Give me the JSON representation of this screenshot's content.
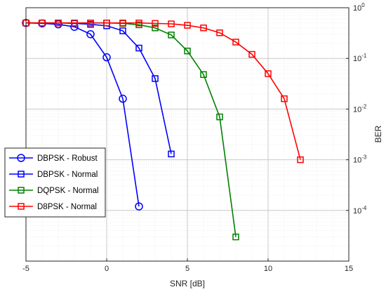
{
  "chart_data": {
    "type": "line",
    "xlabel": "SNR [dB]",
    "ylabel": "BER",
    "xlim": [
      -5,
      15
    ],
    "ylim": [
      1e-05,
      1
    ],
    "yscale": "log",
    "x_ticks": [
      "-5",
      "0",
      "5",
      "10",
      "15"
    ],
    "y_ticks": [
      {
        "value": 1,
        "base": "10",
        "exp": "0"
      },
      {
        "value": 0.1,
        "base": "10",
        "exp": "-1"
      },
      {
        "value": 0.01,
        "base": "10",
        "exp": "-2"
      },
      {
        "value": 0.001,
        "base": "10",
        "exp": "-3"
      },
      {
        "value": 0.0001,
        "base": "10",
        "exp": "-4"
      }
    ],
    "grid": true,
    "minor_grid": true,
    "y_axis_position": "right",
    "legend": "left",
    "series": [
      {
        "name": "DBPSK - Robust",
        "color": "#0000ff",
        "marker": "circle",
        "x": [
          -5,
          -4,
          -3,
          -2,
          -1,
          0,
          1,
          2
        ],
        "y": [
          0.5,
          0.49,
          0.47,
          0.42,
          0.3,
          0.105,
          0.016,
          0.00012
        ]
      },
      {
        "name": "DBPSK - Normal",
        "color": "#0000ff",
        "marker": "square",
        "x": [
          -5,
          -4,
          -3,
          -2,
          -1,
          0,
          1,
          2,
          3,
          4
        ],
        "y": [
          0.5,
          0.5,
          0.5,
          0.49,
          0.47,
          0.44,
          0.35,
          0.16,
          0.04,
          0.0013
        ]
      },
      {
        "name": "DQPSK - Normal",
        "color": "#008000",
        "marker": "square",
        "x": [
          -5,
          -4,
          -3,
          -2,
          -1,
          0,
          1,
          2,
          3,
          4,
          5,
          6,
          7,
          8
        ],
        "y": [
          0.5,
          0.5,
          0.5,
          0.5,
          0.5,
          0.5,
          0.49,
          0.46,
          0.4,
          0.29,
          0.14,
          0.048,
          0.007,
          3e-05
        ]
      },
      {
        "name": "D8PSK - Normal",
        "color": "#ff0000",
        "marker": "square",
        "x": [
          -5,
          -4,
          -3,
          -2,
          -1,
          0,
          1,
          2,
          3,
          4,
          5,
          6,
          7,
          8,
          9,
          10,
          11,
          12
        ],
        "y": [
          0.5,
          0.5,
          0.5,
          0.5,
          0.5,
          0.5,
          0.5,
          0.5,
          0.49,
          0.48,
          0.45,
          0.4,
          0.32,
          0.21,
          0.12,
          0.05,
          0.016,
          0.001
        ]
      }
    ]
  }
}
